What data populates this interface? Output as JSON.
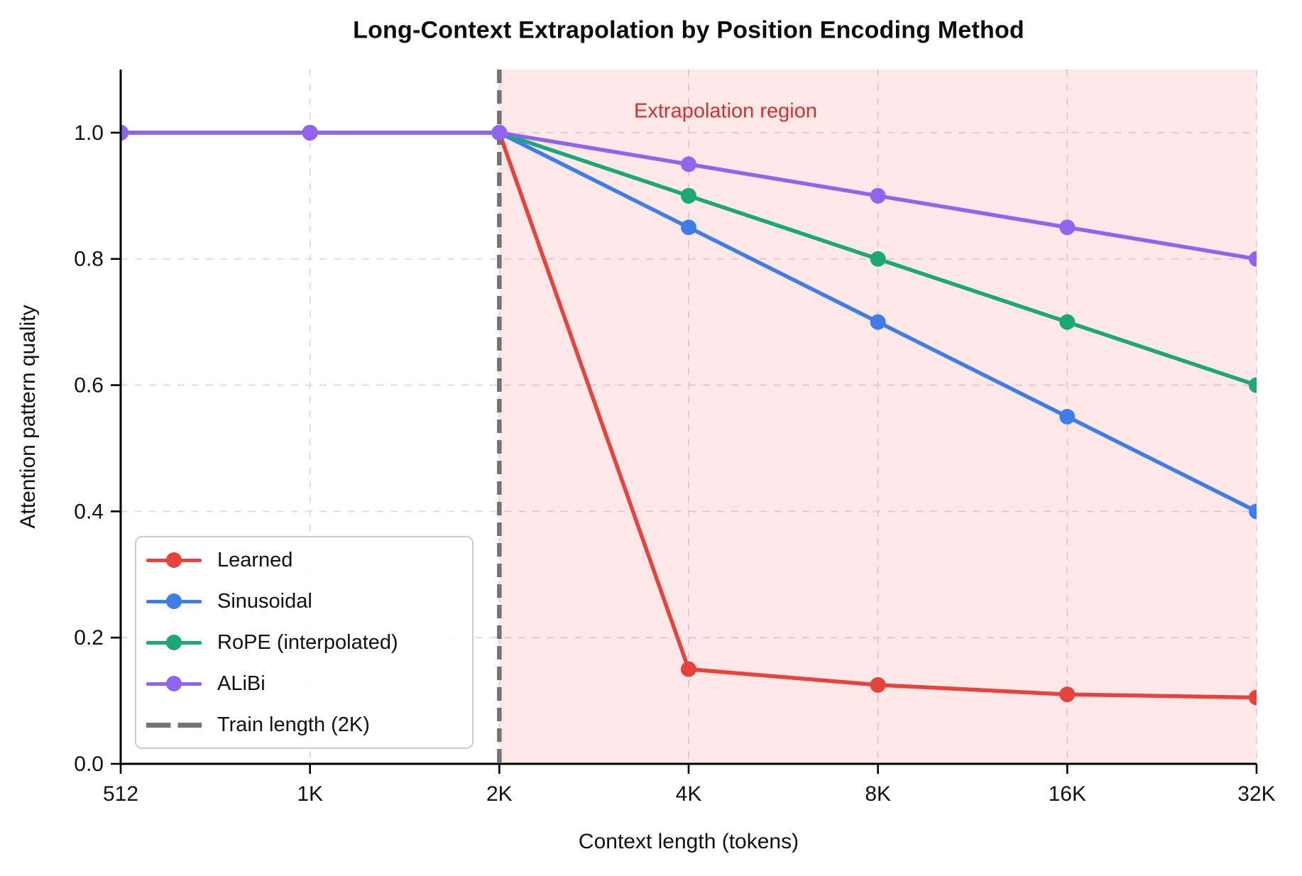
{
  "chart_data": {
    "type": "line",
    "title": "Long-Context Extrapolation by Position Encoding Method",
    "xlabel": "Context length (tokens)",
    "ylabel": "Attention pattern quality",
    "x_scale": "log2",
    "x_values_tokens": [
      512,
      1024,
      2048,
      4096,
      8192,
      16384,
      32768
    ],
    "x_tick_labels": [
      "512",
      "1K",
      "2K",
      "4K",
      "8K",
      "16K",
      "32K"
    ],
    "y_ticks": [
      0.0,
      0.2,
      0.4,
      0.6,
      0.8,
      1.0
    ],
    "y_tick_labels": [
      "0.0",
      "0.2",
      "0.4",
      "0.6",
      "0.8",
      "1.0"
    ],
    "ylim": [
      0,
      1.1
    ],
    "grid": true,
    "grid_color": "#dcdcdc",
    "series": [
      {
        "name": "Learned",
        "color": "#e8423d",
        "values": [
          1.0,
          1.0,
          1.0,
          0.15,
          0.125,
          0.11,
          0.105
        ]
      },
      {
        "name": "Sinusoidal",
        "color": "#3f7de8",
        "values": [
          1.0,
          1.0,
          1.0,
          0.85,
          0.7,
          0.55,
          0.4
        ]
      },
      {
        "name": "RoPE (interpolated)",
        "color": "#1aa878",
        "values": [
          1.0,
          1.0,
          1.0,
          0.9,
          0.8,
          0.7,
          0.6
        ]
      },
      {
        "name": "ALiBi",
        "color": "#9263ed",
        "values": [
          1.0,
          1.0,
          1.0,
          0.95,
          0.9,
          0.85,
          0.8
        ]
      }
    ],
    "train_line": {
      "label": "Train length (2K)",
      "x_tokens": 2048,
      "color": "#737373",
      "style": "dashed"
    },
    "extrapolation_region": {
      "label": "Extrapolation region",
      "from_tokens": 2048,
      "to_tokens": 32768,
      "fill": "rgba(231,76,60,0.13)",
      "label_color": "#d62f2f"
    },
    "legend": {
      "position": "lower left"
    }
  }
}
